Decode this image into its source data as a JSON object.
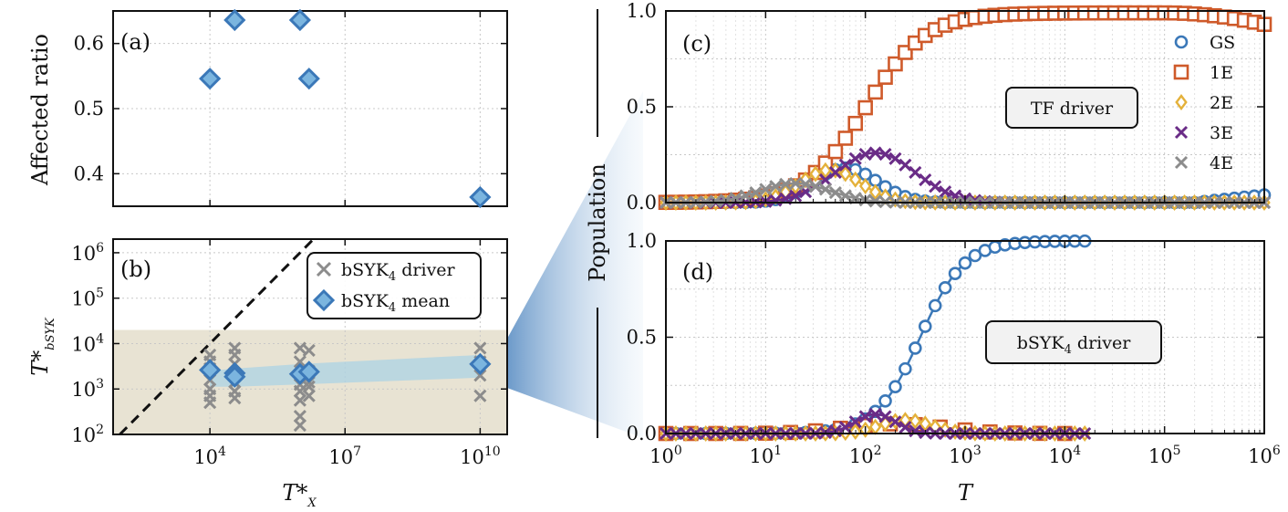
{
  "colors": {
    "gs": "#3B78B8",
    "e1": "#CF5A2A",
    "e2": "#E4B13A",
    "e3": "#6A2C87",
    "e4": "#8C8C8C",
    "mean": "#3B78B8",
    "mean_fill": "#7BB5DF",
    "band": "#A8D2E6",
    "shade": "#E8E3D3"
  },
  "chart_data": [
    {
      "id": "a",
      "type": "scatter",
      "panel_label": "(a)",
      "ylabel": "Affected ratio",
      "xscale": "log",
      "xlim_exp": [
        1.85,
        10.6
      ],
      "ylim": [
        0.35,
        0.65
      ],
      "yticks": [
        "0.4",
        "0.5",
        "0.6"
      ],
      "ytick_values": [
        0.4,
        0.5,
        0.6
      ],
      "points": [
        {
          "x_exp": 4.0,
          "y": 0.546
        },
        {
          "x_exp": 4.55,
          "y": 0.636
        },
        {
          "x_exp": 6.0,
          "y": 0.636
        },
        {
          "x_exp": 6.2,
          "y": 0.546
        },
        {
          "x_exp": 10.0,
          "y": 0.364
        }
      ]
    },
    {
      "id": "b",
      "type": "scatter",
      "panel_label": "(b)",
      "ylabel": "T*",
      "ylabel_sub": "bSYK",
      "xlabel": "T*",
      "xlabel_sub": "X",
      "xscale": "log",
      "yscale": "log",
      "xlim_exp": [
        1.85,
        10.6
      ],
      "ylim_exp": [
        2,
        6.3
      ],
      "yticks": [
        {
          "b": "10",
          "e": "2"
        },
        {
          "b": "10",
          "e": "3"
        },
        {
          "b": "10",
          "e": "4"
        },
        {
          "b": "10",
          "e": "5"
        },
        {
          "b": "10",
          "e": "6"
        }
      ],
      "ytick_exps": [
        2,
        3,
        4,
        5,
        6
      ],
      "xticks": [
        {
          "b": "10",
          "e": "4"
        },
        {
          "b": "10",
          "e": "7"
        },
        {
          "b": "10",
          "e": "10"
        }
      ],
      "xtick_exps": [
        4,
        7,
        10
      ],
      "shaded_band_exp": [
        2,
        4.3
      ],
      "diagonal": "y = x",
      "legend": [
        {
          "label": "bSYK",
          "sub": "4",
          "suffix": " driver",
          "marker": "x"
        },
        {
          "label": "bSYK",
          "sub": "4",
          "suffix": " mean",
          "marker": "diamond"
        }
      ],
      "driver_points": [
        {
          "x_exp": 4.0,
          "y_exp": [
            3.75,
            3.6,
            3.45,
            3.2,
            3.0,
            2.85,
            2.7
          ]
        },
        {
          "x_exp": 4.55,
          "y_exp": [
            3.9,
            3.75,
            3.55,
            3.35,
            3.15,
            2.95,
            2.8
          ]
        },
        {
          "x_exp": 6.0,
          "y_exp": [
            3.9,
            3.6,
            3.1,
            2.95,
            2.75,
            2.4,
            2.2
          ]
        },
        {
          "x_exp": 6.2,
          "y_exp": [
            3.85,
            3.4,
            3.15,
            3.05,
            2.85
          ]
        },
        {
          "x_exp": 10.0,
          "y_exp": [
            3.9,
            3.6,
            3.3,
            2.85
          ]
        }
      ],
      "mean_points": [
        {
          "x_exp": 4.0,
          "y_exp": 3.42
        },
        {
          "x_exp": 4.55,
          "y_exp": 3.35
        },
        {
          "x_exp": 4.55,
          "y_exp": 3.27
        },
        {
          "x_exp": 6.0,
          "y_exp": 3.33
        },
        {
          "x_exp": 6.2,
          "y_exp": 3.38
        },
        {
          "x_exp": 10.0,
          "y_exp": 3.55
        }
      ],
      "mean_band_lo": [
        {
          "x_exp": 4.0,
          "y_exp": 3.05
        },
        {
          "x_exp": 4.55,
          "y_exp": 3.05
        },
        {
          "x_exp": 6.0,
          "y_exp": 3.1
        },
        {
          "x_exp": 10.0,
          "y_exp": 3.25
        }
      ],
      "mean_band_hi": [
        {
          "x_exp": 4.0,
          "y_exp": 3.4
        },
        {
          "x_exp": 4.55,
          "y_exp": 3.45
        },
        {
          "x_exp": 6.0,
          "y_exp": 3.55
        },
        {
          "x_exp": 10.0,
          "y_exp": 3.75
        }
      ]
    },
    {
      "id": "c",
      "type": "line",
      "panel_label": "(c)",
      "annotation": "TF driver",
      "xscale": "log",
      "xlim_exp": [
        0,
        6
      ],
      "ylim": [
        0,
        1
      ],
      "yticks": [
        "0.0",
        "0.5",
        "1.0"
      ],
      "ytick_values": [
        0,
        0.5,
        1
      ],
      "legend": [
        {
          "name": "GS",
          "marker": "circle",
          "key": "gs"
        },
        {
          "name": "1E",
          "marker": "square",
          "key": "e1"
        },
        {
          "name": "2E",
          "marker": "diamond",
          "key": "e2"
        },
        {
          "name": "3E",
          "marker": "x",
          "key": "e3"
        },
        {
          "name": "4E",
          "marker": "x",
          "key": "e4"
        }
      ],
      "series": [
        {
          "key": "gs",
          "kind": "gauss",
          "peak": 0.18,
          "center_exp": 1.8,
          "width": 0.32,
          "tail_from": 5.3,
          "tail_to": 0.04,
          "end_exp": 6
        },
        {
          "key": "e1",
          "kind": "sigmoid",
          "max": 0.99,
          "center_exp": 2.0,
          "width": 0.3,
          "decay_from": 5.0,
          "decay_to": 0.93,
          "end_exp": 6
        },
        {
          "key": "e2",
          "kind": "gauss",
          "peak": 0.17,
          "center_exp": 1.65,
          "width": 0.3,
          "end_exp": 6
        },
        {
          "key": "e3",
          "kind": "gauss",
          "peak": 0.26,
          "center_exp": 2.1,
          "width": 0.4,
          "end_exp": 6
        },
        {
          "key": "e4",
          "kind": "gauss",
          "peak": 0.1,
          "center_exp": 1.3,
          "width": 0.35,
          "end_exp": 6
        }
      ]
    },
    {
      "id": "d",
      "type": "line",
      "panel_label": "(d)",
      "annotation_main": "bSYK",
      "annotation_sub": "4",
      "annotation_suffix": " driver",
      "ylabel": "Population",
      "xlabel": "T",
      "xscale": "log",
      "xlim_exp": [
        0,
        6
      ],
      "ylim": [
        0,
        1
      ],
      "yticks": [
        "0.0",
        "0.5",
        "1.0"
      ],
      "ytick_values": [
        0,
        0.5,
        1
      ],
      "xticks": [
        {
          "b": "10",
          "e": "0"
        },
        {
          "b": "10",
          "e": "1"
        },
        {
          "b": "10",
          "e": "2"
        },
        {
          "b": "10",
          "e": "3"
        },
        {
          "b": "10",
          "e": "4"
        },
        {
          "b": "10",
          "e": "5"
        },
        {
          "b": "10",
          "e": "6"
        }
      ],
      "xtick_exps": [
        0,
        1,
        2,
        3,
        4,
        5,
        6
      ],
      "series": [
        {
          "key": "gs",
          "kind": "sigmoid",
          "max": 1.0,
          "center_exp": 2.55,
          "width": 0.22,
          "end_exp": 4.2
        },
        {
          "key": "e1",
          "kind": "bump",
          "peak": 0.05,
          "center_exp": 2.3,
          "width": 0.5,
          "end_exp": 4.2
        },
        {
          "key": "e2",
          "kind": "gauss",
          "peak": 0.07,
          "center_exp": 2.4,
          "width": 0.25,
          "end_exp": 4.2
        },
        {
          "key": "e3",
          "kind": "gauss",
          "peak": 0.1,
          "center_exp": 2.1,
          "width": 0.2,
          "end_exp": 4.2
        }
      ]
    }
  ]
}
